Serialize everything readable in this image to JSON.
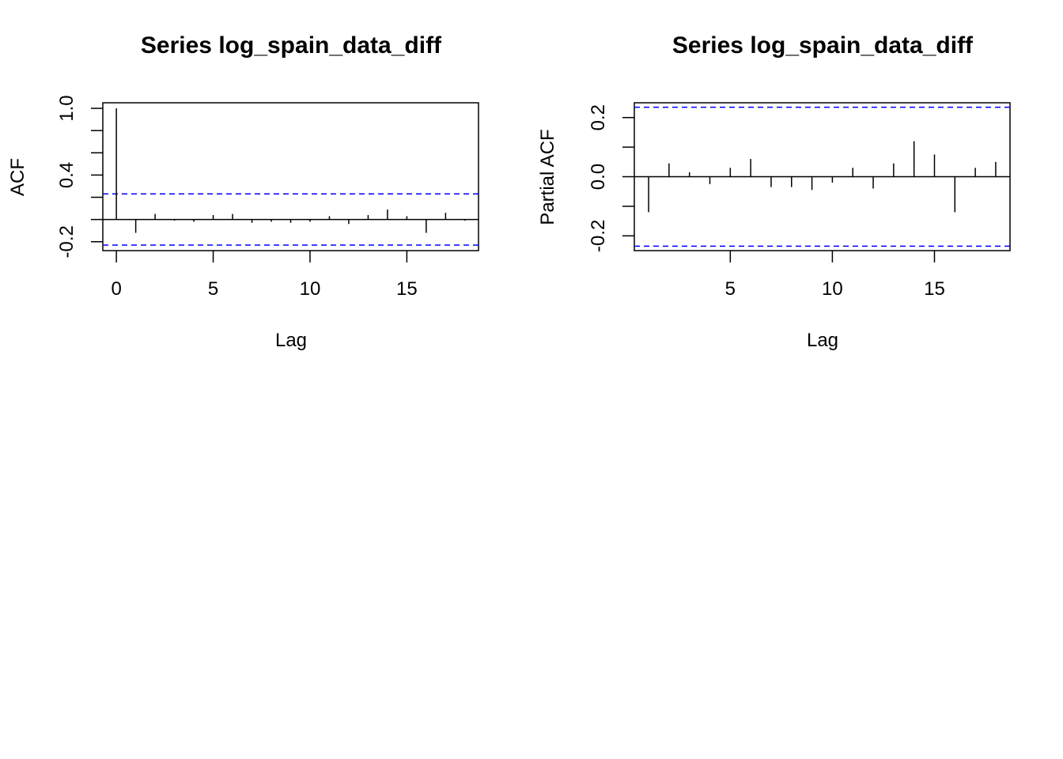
{
  "colors": {
    "bar": "#000000",
    "confidence_band": "#0000ff",
    "frame": "#000000"
  },
  "chart_data": [
    {
      "type": "bar",
      "title": "Series  log_spain_data_diff",
      "xlabel": "Lag",
      "ylabel": "ACF",
      "lags": [
        0,
        1,
        2,
        3,
        4,
        5,
        6,
        7,
        8,
        9,
        10,
        11,
        12,
        13,
        14,
        15,
        16,
        17,
        18
      ],
      "values": [
        1.0,
        -0.12,
        0.05,
        -0.01,
        -0.02,
        0.04,
        0.05,
        -0.03,
        -0.02,
        -0.03,
        -0.02,
        0.03,
        -0.04,
        0.04,
        0.09,
        0.03,
        -0.12,
        0.06,
        -0.01
      ],
      "confidence_bound": 0.23,
      "xlim": [
        -0.7,
        18.7
      ],
      "ylim": [
        -0.28,
        1.05
      ],
      "xticks": [
        0,
        5,
        10,
        15
      ],
      "xtick_labels": [
        "0",
        "5",
        "10",
        "15"
      ],
      "yticks": [
        -0.2,
        0.0,
        0.2,
        0.4,
        0.6,
        0.8,
        1.0
      ],
      "ylabel_ticks": [
        {
          "value": -0.2,
          "label": "-0.2"
        },
        {
          "value": 0.4,
          "label": "0.4"
        },
        {
          "value": 1.0,
          "label": "1.0"
        }
      ],
      "grid": false,
      "legend": "none"
    },
    {
      "type": "bar",
      "title": "Series  log_spain_data_diff",
      "xlabel": "Lag",
      "ylabel": "Partial ACF",
      "lags": [
        1,
        2,
        3,
        4,
        5,
        6,
        7,
        8,
        9,
        10,
        11,
        12,
        13,
        14,
        15,
        16,
        17,
        18
      ],
      "values": [
        -0.12,
        0.045,
        0.015,
        -0.025,
        0.03,
        0.06,
        -0.035,
        -0.035,
        -0.045,
        -0.02,
        0.03,
        -0.04,
        0.045,
        0.12,
        0.075,
        -0.12,
        0.03,
        0.05
      ],
      "confidence_bound": 0.235,
      "xlim": [
        0.3,
        18.7
      ],
      "ylim": [
        -0.25,
        0.25
      ],
      "xticks": [
        5,
        10,
        15
      ],
      "xtick_labels": [
        "5",
        "10",
        "15"
      ],
      "yticks": [
        -0.2,
        -0.1,
        0.0,
        0.1,
        0.2
      ],
      "ylabel_ticks": [
        {
          "value": -0.2,
          "label": "-0.2"
        },
        {
          "value": 0.0,
          "label": "0.0"
        },
        {
          "value": 0.2,
          "label": "0.2"
        }
      ],
      "grid": false,
      "legend": "none"
    }
  ]
}
